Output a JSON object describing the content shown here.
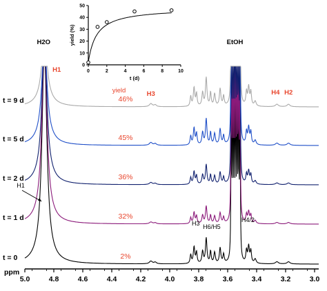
{
  "chart_data": [
    {
      "type": "line",
      "subtype": "nmr-stacked-spectra",
      "title": "",
      "xlabel": "ppm",
      "x_axis": {
        "reversed": true,
        "xlim": [
          5.1,
          2.98
        ],
        "ticks": [
          5.0,
          4.8,
          4.6,
          4.4,
          4.2,
          4.0,
          3.8,
          3.6,
          3.4,
          3.2,
          3.0
        ],
        "tick_labels": [
          "5.0",
          "4.8",
          "4.6",
          "4.4",
          "4.2",
          "4.0",
          "3.8",
          "3.6",
          "3.4",
          "3.2",
          "3.0"
        ]
      },
      "series": [
        {
          "name": "t = 0",
          "color": "#000000",
          "yield_label": "2%"
        },
        {
          "name": "t = 1 d",
          "color": "#8b1a7a",
          "yield_label": "32%"
        },
        {
          "name": "t = 2 d",
          "color": "#10206e",
          "yield_label": "36%"
        },
        {
          "name": "t = 5 d",
          "color": "#1f4fc8",
          "yield_label": "45%"
        },
        {
          "name": "t = 9 d",
          "color": "#a9a9a9",
          "yield_label": "46%"
        }
      ],
      "peak_labels_top": [
        {
          "text": "H2O",
          "ppm": 4.87,
          "color": "#000000"
        },
        {
          "text": "H1",
          "ppm": 4.78,
          "color": "#e8452c"
        },
        {
          "text": "yield",
          "ppm": 4.35,
          "color": "#e8452c"
        },
        {
          "text": "H3",
          "ppm": 4.13,
          "color": "#e8452c"
        },
        {
          "text": "EtOH",
          "ppm": 3.55,
          "color": "#000000"
        },
        {
          "text": "H4",
          "ppm": 3.27,
          "color": "#e8452c"
        },
        {
          "text": "H2",
          "ppm": 3.18,
          "color": "#e8452c"
        }
      ],
      "peak_labels_bottom": [
        {
          "text": "H1",
          "ppm": 5.0,
          "color": "#000000"
        },
        {
          "text": "H3",
          "ppm": 3.82,
          "color": "#000000"
        },
        {
          "text": "H6/H5",
          "ppm": 3.71,
          "color": "#000000"
        },
        {
          "text": "H4/2",
          "ppm": 3.46,
          "color": "#000000"
        }
      ],
      "colors": {
        "label_red": "#e8452c",
        "axis": "#000000"
      }
    },
    {
      "type": "scatter",
      "subtype": "inset-yield-vs-time",
      "xlabel": "t (d)",
      "ylabel": "yield (%)",
      "xlim": [
        0,
        10
      ],
      "ylim": [
        0,
        50
      ],
      "x_ticks": [
        0,
        2,
        4,
        6,
        8,
        10
      ],
      "y_ticks": [
        0,
        10,
        20,
        30,
        40,
        50
      ],
      "points": [
        {
          "x": 0,
          "y": 2
        },
        {
          "x": 1,
          "y": 32
        },
        {
          "x": 2,
          "y": 36
        },
        {
          "x": 5,
          "y": 45
        },
        {
          "x": 9,
          "y": 46
        }
      ],
      "fit_curve": true
    }
  ]
}
